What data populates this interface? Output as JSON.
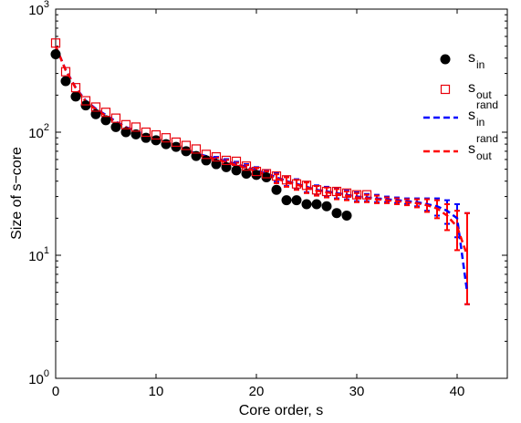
{
  "chart_data": {
    "type": "scatter",
    "xlabel": "Core order, s",
    "ylabel": "Size of s−core",
    "xlim": [
      0,
      45
    ],
    "ylim": [
      1,
      1000
    ],
    "yscale": "log",
    "xticks": [
      "0",
      "10",
      "20",
      "30",
      "40"
    ],
    "ytick_bases": [
      "10",
      "10",
      "10",
      "10"
    ],
    "ytick_exps": [
      "0",
      "1",
      "2",
      "3"
    ],
    "grid": false,
    "legend_position": "top-right",
    "series": [
      {
        "name": "s",
        "sub": "in",
        "sup": "",
        "marker": "filled-circle",
        "color": "#000000",
        "x": [
          0,
          1,
          2,
          3,
          4,
          5,
          6,
          7,
          8,
          9,
          10,
          11,
          12,
          13,
          14,
          15,
          16,
          17,
          18,
          19,
          20,
          21,
          22,
          23,
          24,
          25,
          26,
          27,
          28,
          29
        ],
        "y": [
          430,
          260,
          195,
          165,
          140,
          125,
          110,
          100,
          96,
          90,
          86,
          80,
          76,
          70,
          64,
          59,
          55,
          52,
          49,
          46,
          45,
          43,
          34,
          28,
          28,
          26,
          26,
          25,
          22,
          21
        ]
      },
      {
        "name": "s",
        "sub": "out",
        "sup": "",
        "marker": "open-square",
        "color": "#e8000b",
        "x": [
          0,
          1,
          2,
          3,
          4,
          5,
          6,
          7,
          8,
          9,
          10,
          11,
          12,
          13,
          14,
          15,
          16,
          17,
          18,
          19,
          20,
          21,
          22,
          23,
          24,
          25,
          26,
          27,
          28,
          29,
          30,
          31
        ],
        "y": [
          530,
          310,
          230,
          180,
          160,
          145,
          130,
          115,
          110,
          100,
          95,
          90,
          83,
          78,
          73,
          66,
          63,
          59,
          58,
          53,
          48,
          46,
          44,
          41,
          38,
          37,
          34,
          33,
          33,
          32,
          31,
          31
        ]
      },
      {
        "name": "s",
        "sub": "in",
        "sup": "rand",
        "line": "dashed",
        "color": "#0000ff",
        "x": [
          0,
          1,
          2,
          3,
          4,
          5,
          6,
          7,
          8,
          9,
          10,
          11,
          12,
          13,
          14,
          15,
          16,
          17,
          18,
          19,
          20,
          21,
          22,
          23,
          24,
          25,
          26,
          27,
          28,
          29,
          30,
          31,
          32,
          33,
          34,
          35,
          36,
          37,
          38,
          39,
          40,
          41
        ],
        "y": [
          500,
          320,
          230,
          180,
          155,
          138,
          122,
          110,
          102,
          95,
          88,
          82,
          77,
          72,
          67,
          64,
          61,
          58,
          55,
          52,
          49,
          46,
          43,
          40,
          38,
          36,
          34,
          33,
          32,
          31,
          30,
          29.5,
          29,
          28.5,
          28,
          27.5,
          27,
          26,
          25,
          23,
          20,
          5
        ],
        "err_low": [
          0,
          0,
          0,
          0,
          0,
          0,
          0,
          0,
          0,
          0,
          0,
          0,
          0,
          0,
          0,
          0,
          2,
          2.5,
          2.5,
          3,
          3,
          3,
          3.5,
          3.5,
          3.5,
          3.5,
          3,
          3,
          3,
          2.5,
          2.5,
          2,
          2,
          1.5,
          1.5,
          1.5,
          2,
          3,
          4,
          5,
          6,
          1
        ],
        "err_high": [
          0,
          0,
          0,
          0,
          0,
          0,
          0,
          0,
          0,
          0,
          0,
          0,
          0,
          0,
          0,
          0,
          2,
          2.5,
          2.5,
          3,
          3,
          3,
          3.5,
          3.5,
          3.5,
          3.5,
          3,
          3,
          3,
          2.5,
          2.5,
          2,
          2,
          1.5,
          1.5,
          1.5,
          2,
          3,
          4,
          5,
          6,
          17
        ]
      },
      {
        "name": "s",
        "sub": "out",
        "sup": "rand",
        "line": "dashed",
        "color": "#ff0000",
        "x": [
          0,
          1,
          2,
          3,
          4,
          5,
          6,
          7,
          8,
          9,
          10,
          11,
          12,
          13,
          14,
          15,
          16,
          17,
          18,
          19,
          20,
          21,
          22,
          23,
          24,
          25,
          26,
          27,
          28,
          29,
          30,
          31,
          32,
          33,
          34,
          35,
          36,
          37,
          38,
          39,
          40,
          41
        ],
        "y": [
          500,
          318,
          228,
          178,
          153,
          136,
          120,
          109,
          101,
          94,
          87,
          81,
          76,
          71,
          66,
          63,
          60,
          57,
          54,
          51,
          48,
          45,
          42,
          39.5,
          37.5,
          35.5,
          33.5,
          32.5,
          31.5,
          30.5,
          29.5,
          29,
          28.5,
          28,
          27.5,
          27,
          26.5,
          25.5,
          24,
          21,
          17,
          10
        ],
        "err_low": [
          0,
          0,
          0,
          0,
          0,
          0,
          0,
          0,
          0,
          0,
          0,
          0,
          0,
          0,
          0,
          0,
          2,
          2.5,
          2.5,
          3,
          3,
          3,
          3.5,
          3.5,
          3.5,
          3.5,
          3,
          3,
          3,
          2.5,
          2.5,
          2,
          2,
          1.5,
          1.5,
          1.5,
          2,
          3,
          4,
          5,
          6,
          6
        ],
        "err_high": [
          0,
          0,
          0,
          0,
          0,
          0,
          0,
          0,
          0,
          0,
          0,
          0,
          0,
          0,
          0,
          0,
          2,
          2.5,
          2.5,
          3,
          3,
          3,
          3.5,
          3.5,
          3.5,
          3.5,
          3,
          3,
          3,
          2.5,
          2.5,
          2,
          2,
          1.5,
          1.5,
          1.5,
          2,
          3,
          4,
          5,
          6,
          12
        ]
      }
    ]
  }
}
